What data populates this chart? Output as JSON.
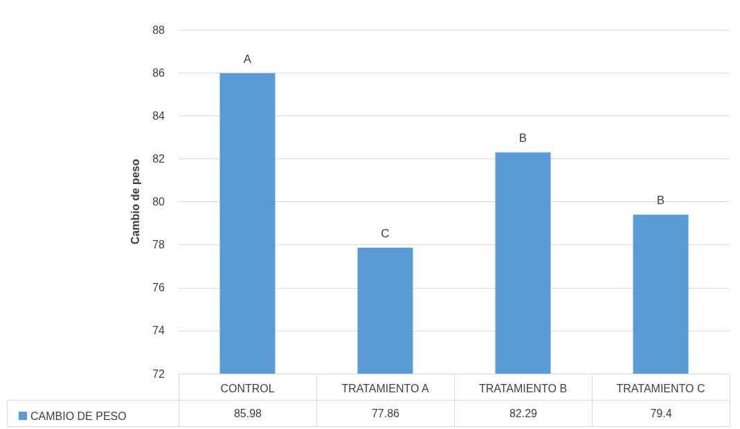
{
  "chart_data": {
    "type": "bar",
    "ylabel": "Cambio de peso",
    "categories": [
      "CONTROL",
      "TRATAMIENTO A",
      "TRATAMIENTO B",
      "TRATAMIENTO C"
    ],
    "series": [
      {
        "name": "CAMBIO DE PESO",
        "color": "#5b9bd5",
        "values": [
          85.98,
          77.86,
          82.29,
          79.4
        ]
      }
    ],
    "ylim": [
      72,
      88
    ],
    "yticks": [
      72,
      74,
      76,
      78,
      80,
      82,
      84,
      86,
      88
    ],
    "grid": "y",
    "data_labels": true,
    "legend": "bottom left",
    "annotations": [
      {
        "text": "A",
        "x": "CONTROL",
        "y": 85.98
      },
      {
        "text": "C",
        "x": "TRATAMIENTO A",
        "y": 77.86
      },
      {
        "text": "B",
        "x": "TRATAMIENTO B",
        "y": 82.29
      },
      {
        "text": "B",
        "x": "TRATAMIENTO C",
        "y": 79.4
      }
    ]
  }
}
